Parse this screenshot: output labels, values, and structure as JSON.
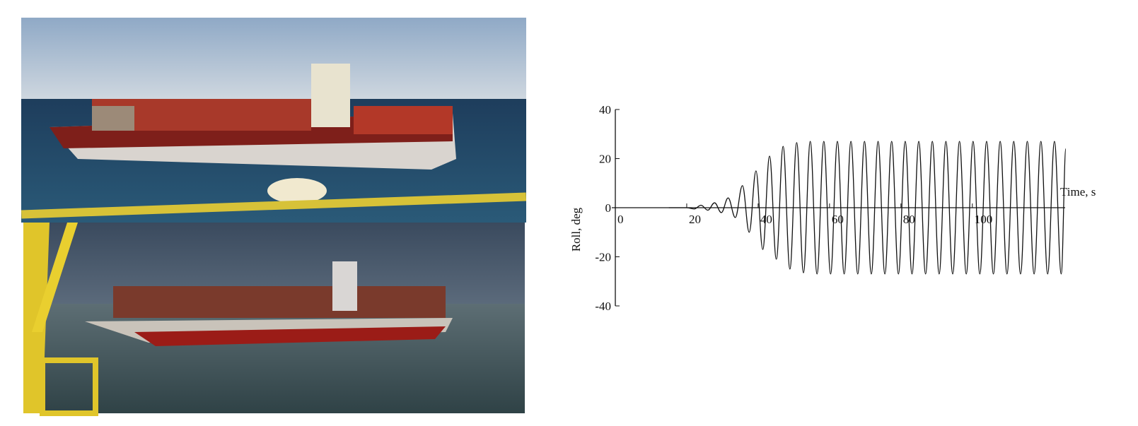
{
  "chart_data": {
    "type": "line",
    "x_label": "Time, s",
    "y_label": "Roll, deg",
    "xlim": [
      0,
      126
    ],
    "ylim": [
      -40,
      40
    ],
    "xticks": [
      0,
      20,
      40,
      60,
      80,
      100
    ],
    "yticks": [
      -40,
      -20,
      0,
      20,
      40
    ],
    "color": "#111111",
    "x": [
      15,
      20,
      22.1,
      24.0,
      25.9,
      27.8,
      29.7,
      31.6,
      33.6,
      35.6,
      37.5,
      39.4,
      41.3,
      43.2,
      45.1,
      47.0,
      48.9,
      50.8,
      52.7,
      54.6,
      56.5,
      58.4,
      60.3,
      62.2,
      64.1,
      66.0,
      67.9,
      69.8,
      71.7,
      73.6,
      75.5,
      77.4,
      79.3,
      81.2,
      83.1,
      85.0,
      86.9,
      88.8,
      90.7,
      92.6,
      94.5,
      96.4,
      98.3,
      100.2,
      102.1,
      104.0,
      105.9,
      107.8,
      109.7,
      111.6,
      113.5,
      115.4,
      117.3,
      119.2,
      121.1,
      123.0,
      124.9,
      126.2
    ],
    "values": [
      0,
      0,
      -0.5,
      1,
      -1,
      2,
      -2,
      4,
      -4,
      9,
      -10,
      15,
      -17,
      21,
      -21,
      25,
      -25,
      26.5,
      -26.5,
      27,
      -27,
      27,
      -27,
      27,
      -27,
      27,
      -27,
      27,
      -27,
      27,
      -27,
      27,
      -27,
      27,
      -27,
      27,
      -27,
      27,
      -27,
      27,
      -27,
      27,
      -27,
      27,
      -27,
      27,
      -27,
      27,
      -27,
      27,
      -27,
      27,
      -27,
      27,
      -27,
      27,
      -27,
      24
    ]
  }
}
